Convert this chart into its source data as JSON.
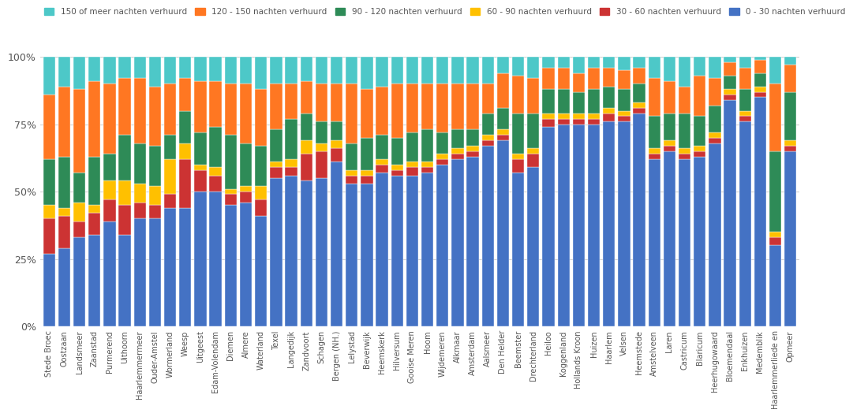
{
  "categories": [
    "Stede Broec",
    "Oostzaan",
    "Landsmeer",
    "Zaanstad",
    "Purmerend",
    "Uithoorn",
    "Haarlemmermeer",
    "Ouder-Amstel",
    "Wormerland",
    "Weesp",
    "Uitgeest",
    "Edam-Volendam",
    "Diemen",
    "Almere",
    "Waterland",
    "Texel",
    "Langedijk",
    "Zandvoort",
    "Schagen",
    "Bergen (NH.)",
    "Lelystad",
    "Beverwijk",
    "Heemskerk",
    "Hilversum",
    "Gooise Meren",
    "Hoom",
    "Wijdemeren",
    "Alkmaar",
    "Amsterdam",
    "Aalsmeer",
    "Den Helder",
    "Beemster",
    "Drechterland",
    "Heiloo",
    "Koggenland",
    "Hollands Kroon",
    "Huizen",
    "Haarlem",
    "Velsen",
    "Heemstede",
    "Amstelveen",
    "Laren",
    "Castricum",
    "Blaricum",
    "Heerhugowaard",
    "Bloemendaal",
    "Enkhuizen",
    "Medemblik",
    "Haarlemmerliede en",
    "Opmeer"
  ],
  "series": {
    "0-30": [
      27,
      29,
      33,
      34,
      39,
      34,
      40,
      40,
      44,
      44,
      50,
      50,
      45,
      46,
      41,
      55,
      56,
      54,
      55,
      61,
      53,
      53,
      57,
      56,
      56,
      57,
      60,
      62,
      63,
      67,
      69,
      57,
      59,
      74,
      75,
      75,
      75,
      76,
      76,
      79,
      62,
      65,
      62,
      63,
      68,
      84,
      76,
      85,
      30,
      65
    ],
    "30-60": [
      13,
      12,
      6,
      8,
      8,
      11,
      6,
      5,
      5,
      18,
      8,
      6,
      4,
      4,
      6,
      4,
      3,
      10,
      10,
      5,
      3,
      3,
      3,
      2,
      3,
      2,
      2,
      2,
      2,
      2,
      2,
      5,
      5,
      3,
      2,
      2,
      2,
      3,
      2,
      2,
      2,
      2,
      2,
      2,
      2,
      2,
      2,
      2,
      3,
      2
    ],
    "60-90": [
      5,
      3,
      7,
      3,
      7,
      9,
      7,
      7,
      13,
      6,
      2,
      3,
      2,
      2,
      5,
      2,
      3,
      5,
      3,
      3,
      2,
      2,
      2,
      2,
      2,
      2,
      2,
      2,
      2,
      2,
      2,
      2,
      2,
      2,
      2,
      2,
      2,
      2,
      2,
      2,
      2,
      2,
      2,
      2,
      2,
      2,
      2,
      2,
      2,
      2
    ],
    "90-120": [
      17,
      19,
      11,
      18,
      10,
      17,
      15,
      15,
      9,
      12,
      12,
      15,
      20,
      16,
      15,
      12,
      15,
      10,
      8,
      7,
      10,
      12,
      9,
      10,
      11,
      12,
      8,
      7,
      6,
      8,
      8,
      15,
      13,
      9,
      9,
      8,
      9,
      8,
      8,
      7,
      12,
      10,
      13,
      11,
      10,
      5,
      8,
      5,
      30,
      18
    ],
    "120-150": [
      24,
      26,
      31,
      28,
      26,
      21,
      24,
      22,
      19,
      12,
      19,
      17,
      19,
      22,
      21,
      17,
      13,
      12,
      14,
      14,
      22,
      18,
      18,
      20,
      18,
      17,
      18,
      17,
      17,
      11,
      13,
      14,
      13,
      8,
      8,
      7,
      8,
      7,
      7,
      6,
      14,
      12,
      10,
      15,
      10,
      5,
      8,
      5,
      25,
      10
    ],
    "150+": [
      14,
      11,
      12,
      9,
      10,
      8,
      8,
      11,
      10,
      8,
      9,
      9,
      10,
      10,
      12,
      10,
      10,
      9,
      10,
      10,
      10,
      12,
      11,
      10,
      10,
      10,
      10,
      10,
      10,
      10,
      6,
      7,
      8,
      4,
      4,
      6,
      4,
      4,
      5,
      4,
      8,
      9,
      11,
      7,
      8,
      2,
      4,
      1,
      10,
      3
    ]
  },
  "colors": {
    "0-30": "#4472C4",
    "30-60": "#CC3333",
    "60-90": "#FFC000",
    "90-120": "#2E8B57",
    "120-150": "#FF7722",
    "150+": "#4DC8C8"
  },
  "legend_labels": {
    "150+": "150 of meer nachten verhuurd",
    "120-150": "120 - 150 nachten verhuurd",
    "90-120": "90 - 120 nachten verhuurd",
    "60-90": "60 - 90 nachten verhuurd",
    "30-60": "30 - 60 nachten verhuurd",
    "0-30": "0 - 30 nachten verhuurd"
  },
  "yticks": [
    0,
    25,
    50,
    75,
    100
  ],
  "ytick_labels": [
    "0%",
    "25%",
    "50%",
    "75%",
    "100%"
  ],
  "background_color": "#FFFFFF",
  "grid_color": "#CCCCCC"
}
